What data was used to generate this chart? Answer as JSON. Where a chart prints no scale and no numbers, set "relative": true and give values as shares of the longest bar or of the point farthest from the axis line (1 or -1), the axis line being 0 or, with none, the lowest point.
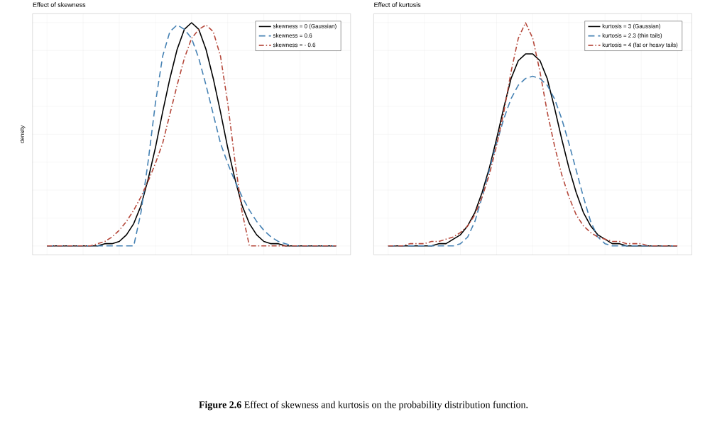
{
  "chart_data": [
    {
      "type": "line",
      "title": "Effect of skewness",
      "ylabel": "density",
      "relative": true,
      "grid": true,
      "legend": "top right",
      "tick_labels": false,
      "categories": [
        null,
        null,
        null,
        null,
        null,
        null,
        null,
        null,
        null,
        null,
        null,
        null,
        null,
        null,
        null,
        null,
        null,
        null,
        null,
        null,
        null,
        null,
        null,
        null,
        null,
        null,
        null,
        null,
        null,
        null,
        null,
        null,
        null,
        null,
        null,
        null,
        null,
        null,
        null,
        null,
        null
      ],
      "annotations": [
        "**Figure 2.6** Effect of skewness and kurtosis on the probability distribution function."
      ],
      "series": [
        {
          "name": "skewness = 0 (Gaussian)",
          "color": "#000000",
          "line_style": "solid",
          "values": [
            0,
            0,
            0,
            0,
            0,
            0,
            0,
            0,
            0.01,
            0.01,
            0.02,
            0.05,
            0.1,
            0.18,
            0.3,
            0.44,
            0.6,
            0.75,
            0.88,
            0.97,
            1,
            0.97,
            0.88,
            0.75,
            0.6,
            0.44,
            0.3,
            0.18,
            0.1,
            0.05,
            0.02,
            0.01,
            0.01,
            0,
            0,
            0,
            0,
            0,
            0,
            0,
            0
          ]
        },
        {
          "name": "skewness = 0.6",
          "color": "#4682b4",
          "line_style": "dashed",
          "values": [
            0,
            0,
            0,
            0,
            0,
            0,
            0,
            0,
            0,
            0,
            0,
            0,
            0,
            0.15,
            0.38,
            0.64,
            0.85,
            0.96,
            0.99,
            0.97,
            0.93,
            0.84,
            0.72,
            0.59,
            0.46,
            0.37,
            0.29,
            0.22,
            0.16,
            0.11,
            0.07,
            0.04,
            0.02,
            0.01,
            0,
            0,
            0,
            0,
            0,
            0,
            0
          ]
        },
        {
          "name": "skewness = - 0.6",
          "color": "#b5483b",
          "line_style": "dashdot",
          "values": [
            0,
            0,
            0,
            0,
            0,
            0,
            0,
            0.01,
            0.02,
            0.04,
            0.07,
            0.11,
            0.16,
            0.22,
            0.29,
            0.37,
            0.46,
            0.59,
            0.72,
            0.84,
            0.93,
            0.97,
            0.99,
            0.96,
            0.85,
            0.64,
            0.38,
            0.15,
            0,
            0,
            0,
            0,
            0,
            0,
            0,
            0,
            0,
            0,
            0,
            0,
            0
          ]
        }
      ]
    },
    {
      "type": "line",
      "title": "Effect of kurtosis",
      "relative": true,
      "grid": true,
      "legend": "top right",
      "tick_labels": false,
      "categories": [
        null,
        null,
        null,
        null,
        null,
        null,
        null,
        null,
        null,
        null,
        null,
        null,
        null,
        null,
        null,
        null,
        null,
        null,
        null,
        null,
        null,
        null,
        null,
        null,
        null,
        null,
        null,
        null,
        null,
        null,
        null,
        null,
        null,
        null,
        null,
        null,
        null,
        null,
        null,
        null,
        null
      ],
      "series": [
        {
          "name": "kurtosis = 3 (Gaussian)",
          "color": "#000000",
          "line_style": "solid",
          "values": [
            0,
            0,
            0,
            0,
            0,
            0,
            0,
            0.01,
            0.01,
            0.03,
            0.05,
            0.09,
            0.15,
            0.24,
            0.35,
            0.48,
            0.62,
            0.75,
            0.83,
            0.86,
            0.86,
            0.83,
            0.75,
            0.62,
            0.48,
            0.35,
            0.24,
            0.15,
            0.09,
            0.05,
            0.03,
            0.01,
            0.01,
            0,
            0,
            0,
            0,
            0,
            0,
            0,
            0
          ]
        },
        {
          "name": "kurtosis = 2.3 (thin tails)",
          "color": "#4682b4",
          "line_style": "dashed",
          "values": [
            0,
            0,
            0,
            0,
            0,
            0,
            0,
            0,
            0,
            0,
            0.01,
            0.04,
            0.11,
            0.22,
            0.34,
            0.46,
            0.57,
            0.66,
            0.72,
            0.75,
            0.76,
            0.75,
            0.72,
            0.66,
            0.57,
            0.46,
            0.34,
            0.22,
            0.11,
            0.04,
            0.01,
            0,
            0,
            0,
            0,
            0,
            0,
            0,
            0,
            0,
            0
          ]
        },
        {
          "name": "kurtosis = 4 (fat or heavy tails)",
          "color": "#b5483b",
          "line_style": "dashdot",
          "values": [
            0,
            0,
            0,
            0.01,
            0.01,
            0.01,
            0.02,
            0.02,
            0.03,
            0.04,
            0.06,
            0.09,
            0.14,
            0.22,
            0.32,
            0.45,
            0.6,
            0.78,
            0.93,
            1,
            0.93,
            0.78,
            0.6,
            0.45,
            0.32,
            0.22,
            0.14,
            0.09,
            0.06,
            0.04,
            0.03,
            0.02,
            0.02,
            0.01,
            0.01,
            0.01,
            0,
            0,
            0,
            0,
            0
          ]
        }
      ]
    }
  ]
}
